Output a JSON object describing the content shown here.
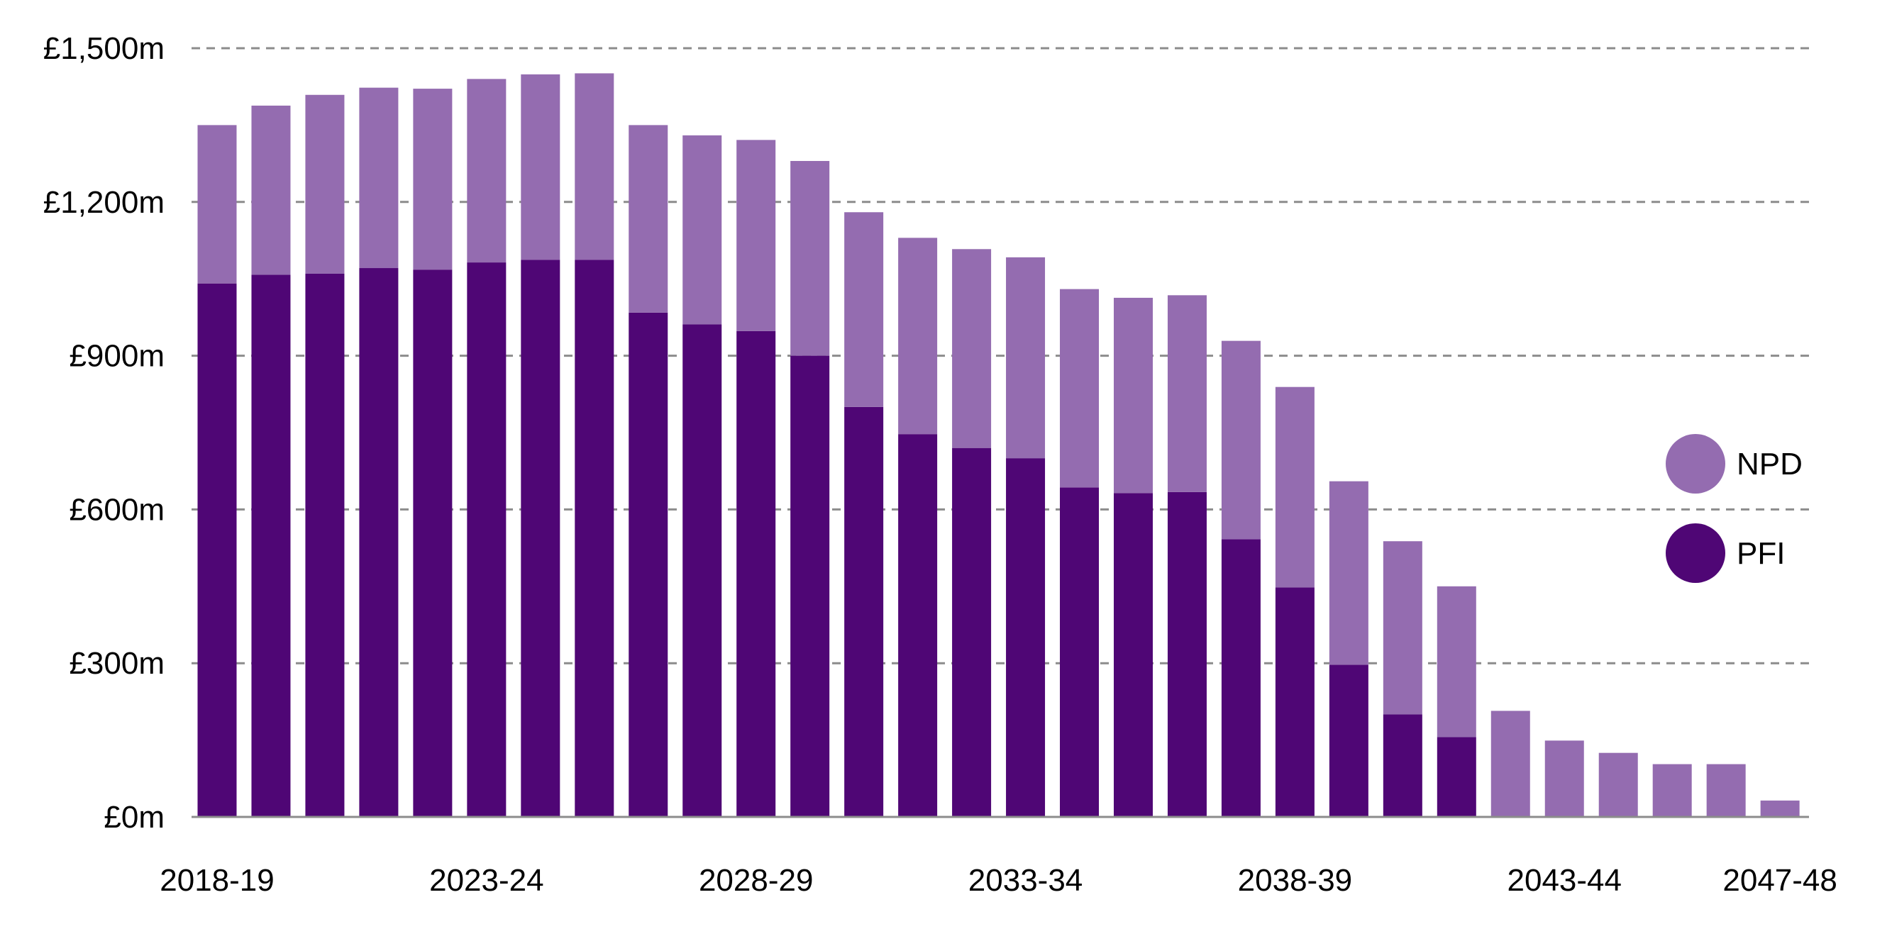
{
  "chart_data": {
    "type": "bar",
    "stacked": true,
    "categories": [
      "2018-19",
      "2019-20",
      "2020-21",
      "2021-22",
      "2022-23",
      "2023-24",
      "2024-25",
      "2025-26",
      "2026-27",
      "2027-28",
      "2028-29",
      "2029-30",
      "2030-31",
      "2031-32",
      "2032-33",
      "2033-34",
      "2034-35",
      "2035-36",
      "2036-37",
      "2037-38",
      "2038-39",
      "2039-40",
      "2040-41",
      "2041-42",
      "2042-43",
      "2043-44",
      "2044-45",
      "2045-46",
      "2046-47",
      "2047-48"
    ],
    "x_tick_labels": [
      "2018-19",
      "2023-24",
      "2028-29",
      "2033-34",
      "2038-39",
      "2043-44",
      "2047-48"
    ],
    "series": [
      {
        "name": "PFI",
        "color": "#4f0675",
        "values": [
          1041,
          1058,
          1060,
          1071,
          1068,
          1082,
          1087,
          1087,
          984,
          961,
          948,
          900,
          800,
          747,
          720,
          700,
          643,
          632,
          634,
          542,
          448,
          297,
          200,
          156,
          0,
          0,
          0,
          0,
          0,
          0
        ]
      },
      {
        "name": "NPD",
        "color": "#946cb0",
        "values": [
          309,
          330,
          349,
          352,
          353,
          358,
          362,
          364,
          366,
          369,
          373,
          380,
          380,
          383,
          388,
          392,
          387,
          381,
          384,
          387,
          391,
          358,
          338,
          294,
          207,
          149,
          125,
          103,
          103,
          32
        ]
      }
    ],
    "y_ticks": [
      "£0m",
      "£300m",
      "£600m",
      "£900m",
      "£1,200m",
      "£1,500m"
    ],
    "y_tick_values": [
      0,
      300,
      600,
      900,
      1200,
      1500
    ],
    "ylim": [
      0,
      1500
    ],
    "grid": true,
    "legend_position": "right",
    "title": "",
    "xlabel": "",
    "ylabel": ""
  }
}
